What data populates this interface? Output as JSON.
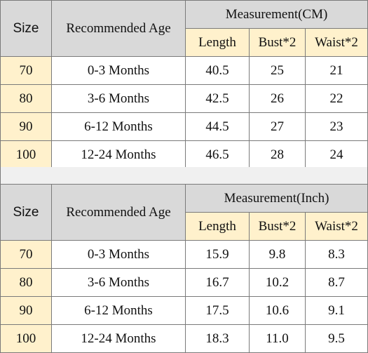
{
  "tables": [
    {
      "headers": {
        "size": "Size",
        "age": "Recommended Age",
        "group": "Measurement(CM)",
        "sub": [
          "Length",
          "Bust*2",
          "Waist*2"
        ]
      },
      "rows": [
        {
          "size": "70",
          "age": "0-3 Months",
          "values": [
            "40.5",
            "25",
            "21"
          ]
        },
        {
          "size": "80",
          "age": "3-6 Months",
          "values": [
            "42.5",
            "26",
            "22"
          ]
        },
        {
          "size": "90",
          "age": "6-12 Months",
          "values": [
            "44.5",
            "27",
            "23"
          ]
        },
        {
          "size": "100",
          "age": "12-24 Months",
          "values": [
            "46.5",
            "28",
            "24"
          ]
        }
      ]
    },
    {
      "headers": {
        "size": "Size",
        "age": "Recommended Age",
        "group": "Measurement(Inch)",
        "sub": [
          "Length",
          "Bust*2",
          "Waist*2"
        ]
      },
      "rows": [
        {
          "size": "70",
          "age": "0-3 Months",
          "values": [
            "15.9",
            "9.8",
            "8.3"
          ]
        },
        {
          "size": "80",
          "age": "3-6 Months",
          "values": [
            "16.7",
            "10.2",
            "8.7"
          ]
        },
        {
          "size": "90",
          "age": "6-12 Months",
          "values": [
            "17.5",
            "10.6",
            "9.1"
          ]
        },
        {
          "size": "100",
          "age": "12-24 Months",
          "values": [
            "18.3",
            "11.0",
            "9.5"
          ]
        }
      ]
    }
  ],
  "colors": {
    "header_grey": "#d9d9d9",
    "highlight_yellow": "#fff1cc",
    "border": "#7a7a7a"
  }
}
